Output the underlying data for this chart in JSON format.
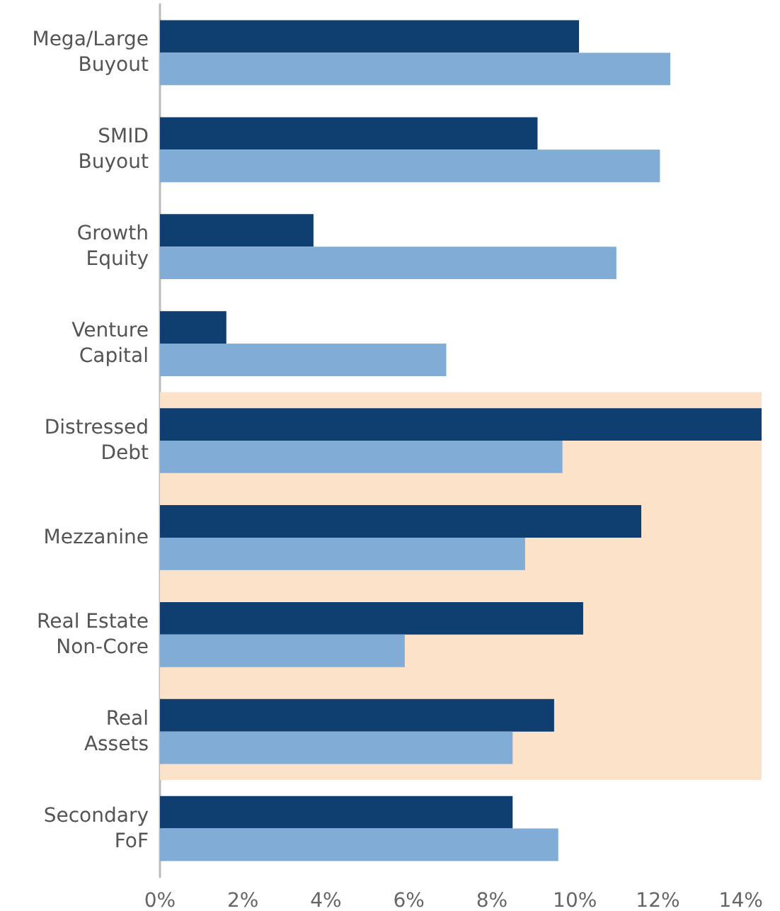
{
  "chart_data": {
    "type": "bar",
    "orientation": "horizontal",
    "categories": [
      "Mega/Large\nBuyout",
      "SMID\nBuyout",
      "Growth\nEquity",
      "Venture\nCapital",
      "Distressed\nDebt",
      "Mezzanine",
      "Real Estate\nNon-Core",
      "Real\nAssets",
      "Secondary\nFoF"
    ],
    "series": [
      {
        "color": "#0f3f70",
        "values": [
          10.1,
          9.1,
          3.7,
          1.6,
          14.5,
          11.6,
          10.2,
          9.5,
          8.5
        ]
      },
      {
        "color": "#80acd6",
        "values": [
          12.3,
          12.05,
          11.0,
          6.9,
          9.7,
          8.8,
          5.9,
          8.5,
          9.6
        ]
      }
    ],
    "xlim": [
      0,
      14.5
    ],
    "xticks": [
      {
        "value": 0,
        "label": "0%"
      },
      {
        "value": 2,
        "label": "2%"
      },
      {
        "value": 4,
        "label": "4%"
      },
      {
        "value": 6,
        "label": "6%"
      },
      {
        "value": 8,
        "label": "8%"
      },
      {
        "value": 10,
        "label": "10%"
      },
      {
        "value": 12,
        "label": "12%"
      },
      {
        "value": 14,
        "label": "14%"
      }
    ],
    "bands": [
      {
        "axis": "y",
        "from": "Distressed\nDebt",
        "to": "Real\nAssets",
        "color": "#fbe2c9"
      }
    ],
    "grid": false
  }
}
